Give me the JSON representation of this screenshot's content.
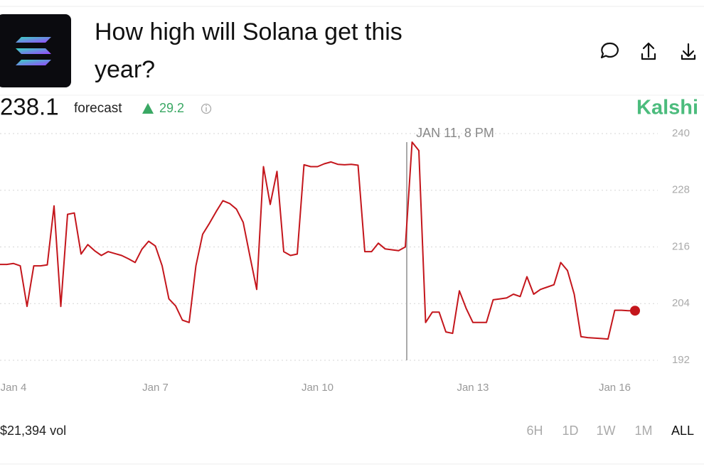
{
  "header": {
    "title_lines": [
      "How high will Solana get this",
      "year?"
    ]
  },
  "summary": {
    "forecast_value": 238.1,
    "forecast_label": "forecast",
    "change": 29.2,
    "brand": "Kalshi"
  },
  "footer": {
    "volume": "$21,394 vol",
    "ranges": [
      "6H",
      "1D",
      "1W",
      "1M",
      "ALL"
    ],
    "active_range": "ALL"
  },
  "chart_data": {
    "type": "line",
    "annotation": "JAN 11, 8 PM",
    "categories": [
      null,
      null,
      "Jan 4",
      null,
      null,
      null,
      null,
      null,
      null,
      null,
      null,
      null,
      null,
      null,
      null,
      null,
      null,
      null,
      null,
      null,
      null,
      null,
      null,
      "Jan 7",
      null,
      null,
      null,
      null,
      null,
      null,
      null,
      null,
      null,
      null,
      null,
      null,
      null,
      null,
      null,
      null,
      null,
      null,
      null,
      null,
      null,
      null,
      null,
      "Jan 10",
      null,
      null,
      null,
      null,
      null,
      null,
      null,
      null,
      null,
      null,
      null,
      null,
      null,
      null,
      null,
      null,
      null,
      null,
      null,
      null,
      null,
      null,
      "Jan 13",
      null,
      null,
      null,
      null,
      null,
      null,
      null,
      null,
      null,
      null,
      null,
      null,
      null,
      null,
      null,
      null,
      null,
      null,
      null,
      null,
      "Jan 16",
      null,
      null,
      null
    ],
    "series": [
      {
        "name": "forecast",
        "color": "#c4161c",
        "values": [
          212.3,
          212.3,
          212.5,
          212,
          203.4,
          212,
          212,
          212.2,
          224.7,
          203.4,
          222.9,
          223.2,
          214.5,
          216.5,
          215.2,
          214.2,
          215,
          214.6,
          214.2,
          213.5,
          212.7,
          215.5,
          217.2,
          216.2,
          212,
          205,
          203.5,
          200.5,
          200,
          212,
          218.7,
          221,
          223.5,
          225.8,
          225.2,
          224,
          221.2,
          214,
          207,
          233,
          225,
          232,
          215,
          214.2,
          214.5,
          233.4,
          233,
          233,
          233.6,
          234,
          233.5,
          233.4,
          233.5,
          233.3,
          215,
          215,
          216.8,
          215.6,
          215.4,
          215.2,
          216,
          238.2,
          236.4,
          200,
          202.2,
          202.2,
          198,
          197.7,
          206.7,
          203,
          200,
          200,
          200,
          204.8,
          205,
          205.2,
          206,
          205.5,
          209.7,
          206,
          207,
          207.5,
          208,
          212.7,
          211,
          206,
          197,
          196.8,
          196.7,
          196.6,
          196.5,
          202.6,
          202.6,
          202.5,
          202.5
        ]
      }
    ],
    "ylim": [
      192,
      240
    ],
    "yticks": [
      192,
      204,
      216,
      228,
      240
    ],
    "grid": true
  }
}
